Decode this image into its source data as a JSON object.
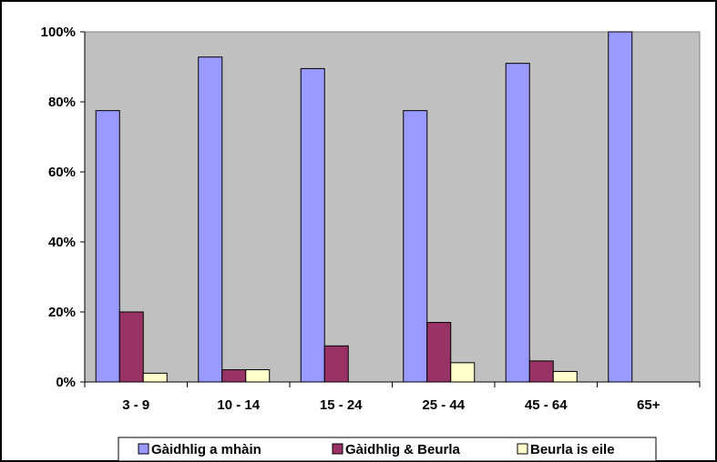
{
  "chart_data": {
    "type": "bar",
    "categories": [
      "3 - 9",
      "10 - 14",
      "15 - 24",
      "25 - 44",
      "45 - 64",
      "65+"
    ],
    "series": [
      {
        "name": "Gàidhlig a mhàin",
        "color": "#9999ff",
        "values": [
          77.5,
          92.8,
          89.5,
          77.5,
          91,
          100
        ]
      },
      {
        "name": "Gàidhlig & Beurla",
        "color": "#993366",
        "values": [
          20,
          3.5,
          10.3,
          17,
          6,
          0
        ]
      },
      {
        "name": "Beurla is eile",
        "color": "#ffffcc",
        "values": [
          2.5,
          3.5,
          0,
          5.5,
          3,
          0
        ]
      }
    ],
    "y_ticks": [
      "0%",
      "20%",
      "40%",
      "60%",
      "80%",
      "100%"
    ],
    "ylim": [
      0,
      100
    ],
    "plot_background": "#c0c0c0",
    "grid": false,
    "legend_position": "bottom"
  }
}
